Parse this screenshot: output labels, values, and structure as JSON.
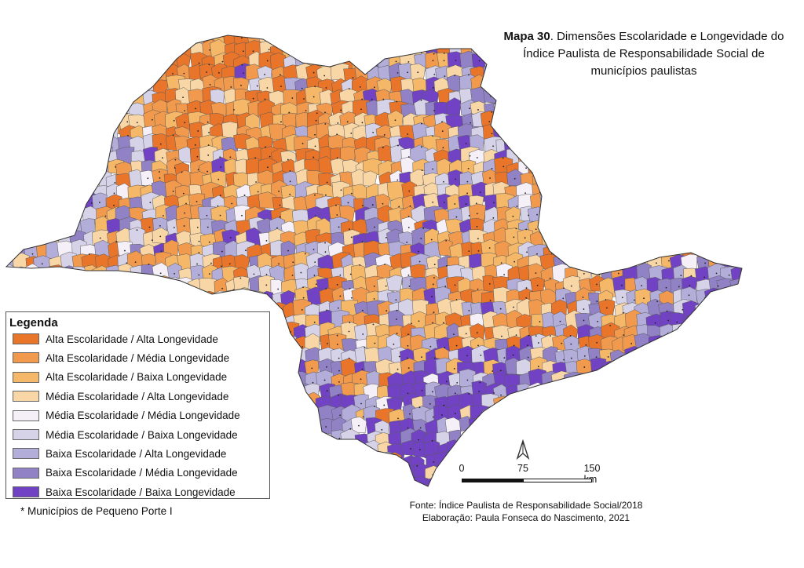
{
  "title": {
    "bold": "Mapa 30",
    "rest": ". Dimensões Escolaridade e Longevidade do Índice Paulista de Responsabilidade Social de municípios paulistas"
  },
  "legend": {
    "title": "Legenda",
    "items": [
      {
        "label": "Alta Escolaridade / Alta Longevidade",
        "color": "#e8752a"
      },
      {
        "label": "Alta Escolaridade / Média Longevidade",
        "color": "#f19a4d"
      },
      {
        "label": "Alta Escolaridade / Baixa Longevidade",
        "color": "#f5b768"
      },
      {
        "label": "Média Escolaridade / Alta Longevidade",
        "color": "#f8d6a6"
      },
      {
        "label": "Média Escolaridade / Média Longevidade",
        "color": "#f5f0f7"
      },
      {
        "label": "Média Escolaridade / Baixa Longevidade",
        "color": "#d6d3e8"
      },
      {
        "label": "Baixa Escolaridade / Alta Longevidade",
        "color": "#b3adda"
      },
      {
        "label": "Baixa Escolaridade / Média Longevidade",
        "color": "#9182c6"
      },
      {
        "label": "Baixa Escolaridade / Baixa Longevidade",
        "color": "#7143c4"
      }
    ]
  },
  "footnote": "* Municípios de Pequeno Porte I",
  "source": {
    "line1": "Fonte: Índice Paulista de Responsabilidade Social/2018",
    "line2": "Elaboração: Paula Fonseca do Nascimento, 2021"
  },
  "scale": {
    "labels": [
      "0",
      "75",
      "150 km"
    ]
  }
}
